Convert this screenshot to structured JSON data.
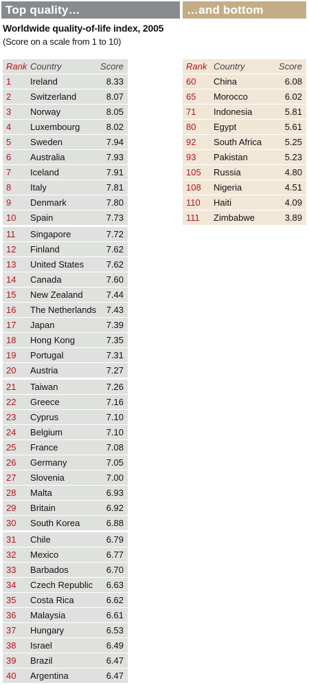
{
  "header": {
    "top_label": "Top quality…",
    "bottom_label": "…and bottom",
    "title": "Worldwide quality-of-life index, 2005",
    "note": "(Score on a scale from 1 to 10)"
  },
  "colors": {
    "top_banner": "#878b90",
    "bottom_banner": "#c4ad84",
    "top_rows": "#dfe1de",
    "bottom_rows": "#f1e7d7",
    "rank_text": "#b4141e"
  },
  "chart_data": {
    "type": "table",
    "columns": [
      "Rank",
      "Country",
      "Score"
    ],
    "top": [
      {
        "rank": "1",
        "country": "Ireland",
        "score": "8.33"
      },
      {
        "rank": "2",
        "country": "Switzerland",
        "score": "8.07"
      },
      {
        "rank": "3",
        "country": "Norway",
        "score": "8.05"
      },
      {
        "rank": "4",
        "country": "Luxembourg",
        "score": "8.02"
      },
      {
        "rank": "5",
        "country": "Sweden",
        "score": "7.94"
      },
      {
        "rank": "6",
        "country": "Australia",
        "score": "7.93"
      },
      {
        "rank": "7",
        "country": "Iceland",
        "score": "7.91"
      },
      {
        "rank": "8",
        "country": "Italy",
        "score": "7.81"
      },
      {
        "rank": "9",
        "country": "Denmark",
        "score": "7.80"
      },
      {
        "rank": "10",
        "country": "Spain",
        "score": "7.73"
      },
      {
        "rank": "11",
        "country": "Singapore",
        "score": "7.72"
      },
      {
        "rank": "12",
        "country": "Finland",
        "score": "7.62"
      },
      {
        "rank": "13",
        "country": "United States",
        "score": "7.62"
      },
      {
        "rank": "14",
        "country": "Canada",
        "score": "7.60"
      },
      {
        "rank": "15",
        "country": "New Zealand",
        "score": "7.44"
      },
      {
        "rank": "16",
        "country": "The Netherlands",
        "score": "7.43"
      },
      {
        "rank": "17",
        "country": "Japan",
        "score": "7.39"
      },
      {
        "rank": "18",
        "country": "Hong Kong",
        "score": "7.35"
      },
      {
        "rank": "19",
        "country": "Portugal",
        "score": "7.31"
      },
      {
        "rank": "20",
        "country": "Austria",
        "score": "7.27"
      },
      {
        "rank": "21",
        "country": "Taiwan",
        "score": "7.26"
      },
      {
        "rank": "22",
        "country": "Greece",
        "score": "7.16"
      },
      {
        "rank": "23",
        "country": "Cyprus",
        "score": "7.10"
      },
      {
        "rank": "24",
        "country": "Belgium",
        "score": "7.10"
      },
      {
        "rank": "25",
        "country": "France",
        "score": "7.08"
      },
      {
        "rank": "26",
        "country": "Germany",
        "score": "7.05"
      },
      {
        "rank": "27",
        "country": "Slovenia",
        "score": "7.00"
      },
      {
        "rank": "28",
        "country": "Malta",
        "score": "6.93"
      },
      {
        "rank": "29",
        "country": "Britain",
        "score": "6.92"
      },
      {
        "rank": "30",
        "country": "South Korea",
        "score": "6.88"
      },
      {
        "rank": "31",
        "country": "Chile",
        "score": "6.79"
      },
      {
        "rank": "32",
        "country": "Mexico",
        "score": "6.77"
      },
      {
        "rank": "33",
        "country": "Barbados",
        "score": "6.70"
      },
      {
        "rank": "34",
        "country": "Czech Republic",
        "score": "6.63"
      },
      {
        "rank": "35",
        "country": "Costa Rica",
        "score": "6.62"
      },
      {
        "rank": "36",
        "country": "Malaysia",
        "score": "6.61"
      },
      {
        "rank": "37",
        "country": "Hungary",
        "score": "6.53"
      },
      {
        "rank": "38",
        "country": "Israel",
        "score": "6.49"
      },
      {
        "rank": "39",
        "country": "Brazil",
        "score": "6.47"
      },
      {
        "rank": "40",
        "country": "Argentina",
        "score": "6.47"
      }
    ],
    "bottom": [
      {
        "rank": "60",
        "country": "China",
        "score": "6.08"
      },
      {
        "rank": "65",
        "country": "Morocco",
        "score": "6.02"
      },
      {
        "rank": "71",
        "country": "Indonesia",
        "score": "5.81"
      },
      {
        "rank": "80",
        "country": "Egypt",
        "score": "5.61"
      },
      {
        "rank": "92",
        "country": "South Africa",
        "score": "5.25"
      },
      {
        "rank": "93",
        "country": "Pakistan",
        "score": "5.23"
      },
      {
        "rank": "105",
        "country": "Russia",
        "score": "4.80"
      },
      {
        "rank": "108",
        "country": "Nigeria",
        "score": "4.51"
      },
      {
        "rank": "110",
        "country": "Haiti",
        "score": "4.09"
      },
      {
        "rank": "111",
        "country": "Zimbabwe",
        "score": "3.89"
      }
    ]
  }
}
